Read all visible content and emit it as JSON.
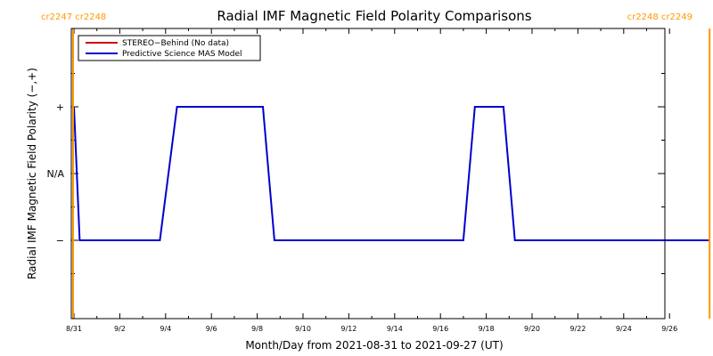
{
  "chart_data": {
    "type": "line",
    "title": "Radial IMF Magnetic Field Polarity Comparisons",
    "xlabel": "Month/Day from 2021-08-31 to 2021-09-27 (UT)",
    "ylabel": "Radial IMF Magnetic Field Polarity (−,+)",
    "x_start": "2021-08-31",
    "x_end": "2021-09-27",
    "x_ticks": [
      {
        "label": "8/31",
        "date": "2021-08-31"
      },
      {
        "label": "9/2",
        "date": "2021-09-02"
      },
      {
        "label": "9/4",
        "date": "2021-09-04"
      },
      {
        "label": "9/6",
        "date": "2021-09-06"
      },
      {
        "label": "9/8",
        "date": "2021-09-08"
      },
      {
        "label": "9/10",
        "date": "2021-09-10"
      },
      {
        "label": "9/12",
        "date": "2021-09-12"
      },
      {
        "label": "9/14",
        "date": "2021-09-14"
      },
      {
        "label": "9/16",
        "date": "2021-09-16"
      },
      {
        "label": "9/18",
        "date": "2021-09-18"
      },
      {
        "label": "9/20",
        "date": "2021-09-20"
      },
      {
        "label": "9/22",
        "date": "2021-09-22"
      },
      {
        "label": "9/24",
        "date": "2021-09-24"
      },
      {
        "label": "9/26",
        "date": "2021-09-26"
      }
    ],
    "y_ticks": [
      {
        "label": "+",
        "value": 1
      },
      {
        "label": "N/A",
        "value": 0
      },
      {
        "label": "−",
        "value": -1
      }
    ],
    "ylim": [
      -2,
      2
    ],
    "legend_position": "top-left",
    "series": [
      {
        "name": "STEREO−Behind (No data)",
        "color": "#cc0000",
        "x": [],
        "y": []
      },
      {
        "name": "Predictive Science MAS Model",
        "color": "#0000cc",
        "x": [
          "2021-08-31T00:00",
          "2021-08-31T06:00",
          "2021-09-03T18:00",
          "2021-09-04T12:00",
          "2021-09-08T06:00",
          "2021-09-08T18:00",
          "2021-09-17T00:00",
          "2021-09-17T12:00",
          "2021-09-18T18:00",
          "2021-09-19T06:00",
          "2021-09-27T18:00"
        ],
        "y": [
          1,
          -1,
          -1,
          1,
          1,
          -1,
          -1,
          1,
          1,
          -1,
          -1
        ]
      }
    ],
    "markers": [
      {
        "date": "2021-08-31",
        "label": "cr2247 cr2248",
        "color": "#ff9900"
      },
      {
        "date": "2021-09-27T18:00",
        "label": "cr2248 cr2249",
        "color": "#ff9900"
      }
    ]
  }
}
